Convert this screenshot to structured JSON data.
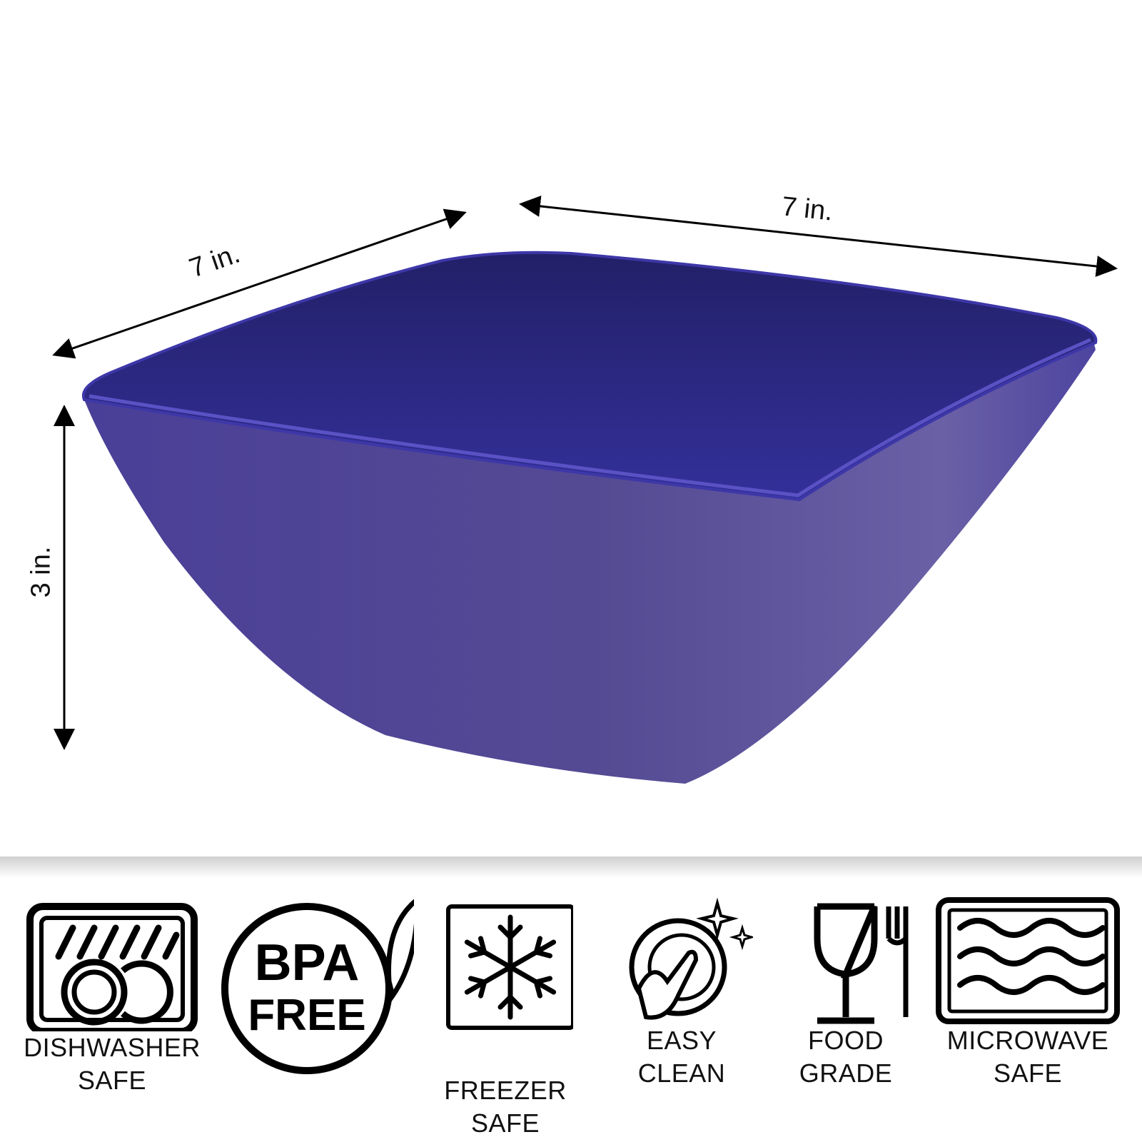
{
  "dimensions": {
    "width": "7 in.",
    "depth": "7 in.",
    "height": "3 in."
  },
  "product": {
    "color": "#4f4796",
    "inner_color": "#2b2775"
  },
  "features": [
    {
      "icon": "dishwasher-icon",
      "line1": "DISHWASHER",
      "line2": "SAFE"
    },
    {
      "icon": "bpa-free-icon",
      "line1": "BPA",
      "line2": "FREE"
    },
    {
      "icon": "snowflake-icon",
      "line1": "FREEZER",
      "line2": "SAFE"
    },
    {
      "icon": "easy-clean-icon",
      "line1": "EASY",
      "line2": "CLEAN"
    },
    {
      "icon": "food-grade-icon",
      "line1": "FOOD",
      "line2": "GRADE"
    },
    {
      "icon": "microwave-icon",
      "line1": "MICROWAVE",
      "line2": "SAFE"
    }
  ]
}
